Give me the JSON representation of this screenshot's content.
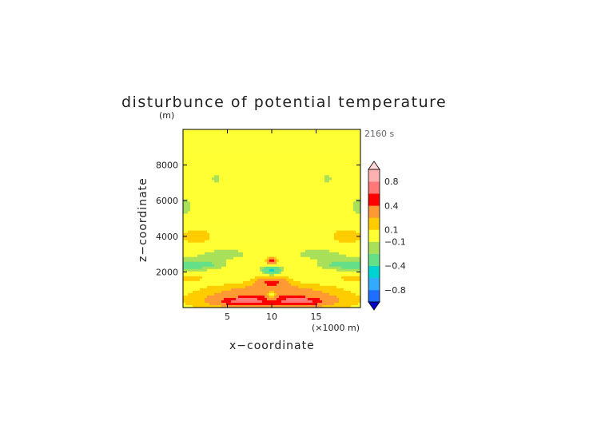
{
  "chart_data": {
    "type": "heatmap",
    "title": "disturbunce of potential temperature",
    "time_label": "2160 s",
    "xlabel": "x−coordinate",
    "x_unit": "(×1000 m)",
    "ylabel": "z−coordinate",
    "y_unit": "(m)",
    "xlim": [
      0,
      20
    ],
    "ylim": [
      0,
      10000
    ],
    "x_ticks": [
      5,
      10,
      15
    ],
    "x_tick_labels": [
      "5",
      "10",
      "15"
    ],
    "y_ticks": [
      2000,
      4000,
      6000,
      8000
    ],
    "y_tick_labels": [
      "2000",
      "4000",
      "6000",
      "8000"
    ],
    "levels": [
      -1.0,
      -0.8,
      -0.6,
      -0.4,
      -0.2,
      -0.1,
      0.1,
      0.2,
      0.4,
      0.6,
      0.8,
      1.0
    ],
    "colors": [
      "#0000cc",
      "#1e6fff",
      "#33aaff",
      "#00d2d2",
      "#66e088",
      "#a8e05a",
      "#ffff33",
      "#ffcc00",
      "#ff9933",
      "#ff0000",
      "#ff7777",
      "#ffb0b0",
      "#ffd8d8"
    ],
    "colorbar_labels": [
      "0.8",
      "0.4",
      "0.1",
      "−0.1",
      "−0.4",
      "−0.8"
    ],
    "colorbar_label_values": [
      0.8,
      0.4,
      0.1,
      -0.1,
      -0.4,
      -0.8
    ],
    "features": [
      {
        "x": 10.0,
        "z": 300,
        "rx": 9.0,
        "rz": 500,
        "value": 0.3
      },
      {
        "x": 10.0,
        "z": 900,
        "rx": 8.0,
        "rz": 550,
        "value": 0.25
      },
      {
        "x": 6.8,
        "z": 350,
        "rx": 2.5,
        "rz": 200,
        "value": 0.45
      },
      {
        "x": 13.2,
        "z": 350,
        "rx": 2.5,
        "rz": 200,
        "value": 0.45
      },
      {
        "x": 10.0,
        "z": 650,
        "rx": 0.6,
        "rz": 300,
        "value": -0.35
      },
      {
        "x": 10.0,
        "z": 1450,
        "rx": 1.8,
        "rz": 320,
        "value": 0.35
      },
      {
        "x": 10.0,
        "z": 2100,
        "rx": 1.1,
        "rz": 320,
        "value": -0.45
      },
      {
        "x": 10.0,
        "z": 2600,
        "rx": 0.7,
        "rz": 240,
        "value": 0.5
      },
      {
        "x": 0.6,
        "z": 2300,
        "rx": 2.2,
        "rz": 500,
        "value": -0.25
      },
      {
        "x": 19.4,
        "z": 2300,
        "rx": 2.2,
        "rz": 500,
        "value": -0.25
      },
      {
        "x": 0.8,
        "z": 1750,
        "rx": 2.0,
        "rz": 300,
        "value": 0.2
      },
      {
        "x": 19.2,
        "z": 1750,
        "rx": 2.0,
        "rz": 300,
        "value": 0.2
      },
      {
        "x": 1.5,
        "z": 4000,
        "rx": 1.8,
        "rz": 450,
        "value": 0.2
      },
      {
        "x": 18.5,
        "z": 4000,
        "rx": 1.8,
        "rz": 450,
        "value": 0.2
      },
      {
        "x": 4.8,
        "z": 3000,
        "rx": 3.2,
        "rz": 380,
        "value": -0.15
      },
      {
        "x": 15.2,
        "z": 3000,
        "rx": 3.2,
        "rz": 380,
        "value": -0.15
      },
      {
        "x": 3.4,
        "z": 2400,
        "rx": 1.8,
        "rz": 280,
        "value": -0.15
      },
      {
        "x": 16.6,
        "z": 2400,
        "rx": 1.8,
        "rz": 280,
        "value": -0.15
      },
      {
        "x": 0.3,
        "z": 5700,
        "rx": 0.8,
        "rz": 700,
        "value": -0.15
      },
      {
        "x": 19.7,
        "z": 5700,
        "rx": 0.8,
        "rz": 700,
        "value": -0.15
      },
      {
        "x": 3.7,
        "z": 7200,
        "rx": 0.5,
        "rz": 350,
        "value": -0.16
      },
      {
        "x": 16.3,
        "z": 7200,
        "rx": 0.5,
        "rz": 350,
        "value": -0.16
      }
    ]
  }
}
